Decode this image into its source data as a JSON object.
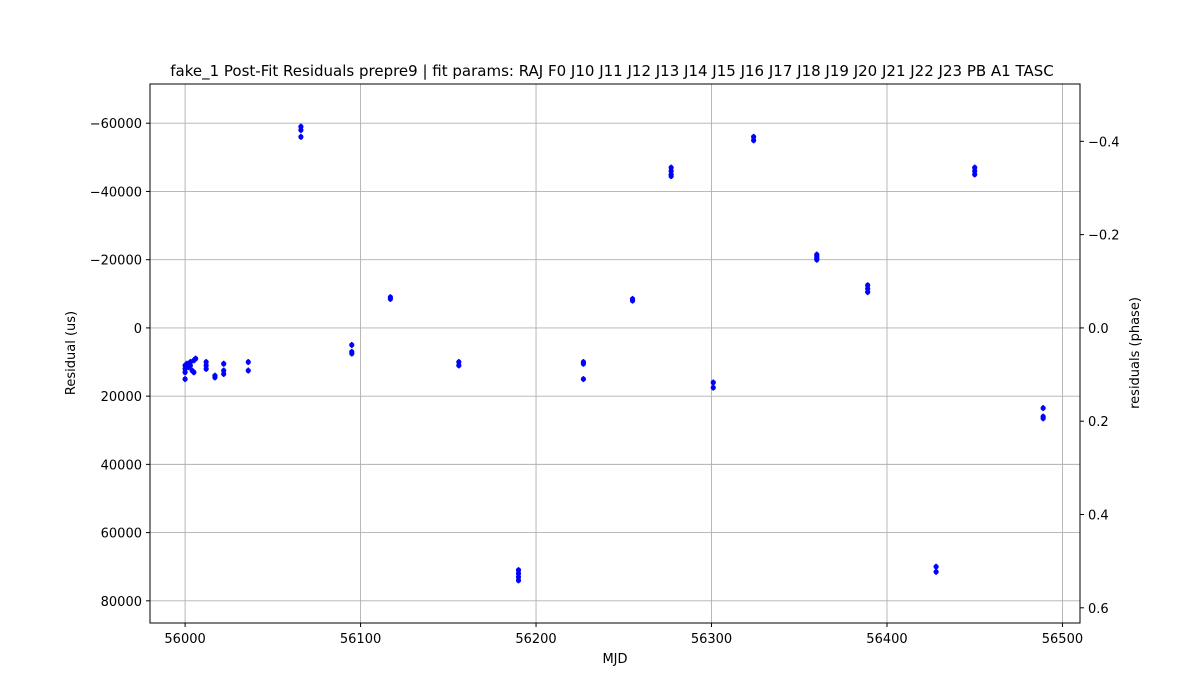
{
  "chart_data": {
    "type": "scatter",
    "title": "fake_1 Post-Fit Residuals prepre9 | fit params: RAJ F0 J10 J11 J12 J13 J14 J15 J16 J17 J18 J19 J20 J21 J22 J23 PB A1 TASC",
    "xlabel": "MJD",
    "ylabel": "Residual (us)",
    "y2label": "residuals (phase)",
    "xlim": [
      55980,
      56510
    ],
    "ylim": [
      86500,
      -71500
    ],
    "y_inverted": true,
    "y2lim": [
      0.6326,
      -0.5229
    ],
    "grid": true,
    "marker_color": "#0000ff",
    "xticks": [
      {
        "value": 56000,
        "label": "56000"
      },
      {
        "value": 56100,
        "label": "56100"
      },
      {
        "value": 56200,
        "label": "56200"
      },
      {
        "value": 56300,
        "label": "56300"
      },
      {
        "value": 56400,
        "label": "56400"
      },
      {
        "value": 56500,
        "label": "56500"
      }
    ],
    "yticks": [
      {
        "value": -60000,
        "label": "−60000"
      },
      {
        "value": -40000,
        "label": "−40000"
      },
      {
        "value": -20000,
        "label": "−20000"
      },
      {
        "value": 0,
        "label": "0"
      },
      {
        "value": 20000,
        "label": "20000"
      },
      {
        "value": 40000,
        "label": "40000"
      },
      {
        "value": 60000,
        "label": "60000"
      },
      {
        "value": 80000,
        "label": "80000"
      }
    ],
    "y2ticks": [
      {
        "value": -0.4,
        "label": "−0.4"
      },
      {
        "value": -0.2,
        "label": "−0.2"
      },
      {
        "value": 0.0,
        "label": "0.0"
      },
      {
        "value": 0.2,
        "label": "0.2"
      },
      {
        "value": 0.4,
        "label": "0.4"
      },
      {
        "value": 0.6,
        "label": "0.6"
      }
    ],
    "series": [
      {
        "points": [
          {
            "x": 56000,
            "y": 11000
          },
          {
            "x": 56000,
            "y": 12000
          },
          {
            "x": 56000,
            "y": 13000
          },
          {
            "x": 56000,
            "y": 15000
          },
          {
            "x": 56001,
            "y": 10500
          },
          {
            "x": 56002,
            "y": 11500
          },
          {
            "x": 56003,
            "y": 11000
          },
          {
            "x": 56003,
            "y": 10000
          },
          {
            "x": 56004,
            "y": 12500
          },
          {
            "x": 56005,
            "y": 13000
          },
          {
            "x": 56005,
            "y": 9500
          },
          {
            "x": 56006,
            "y": 9000
          },
          {
            "x": 56012,
            "y": 10000
          },
          {
            "x": 56012,
            "y": 12000
          },
          {
            "x": 56012,
            "y": 11000
          },
          {
            "x": 56017,
            "y": 14500
          },
          {
            "x": 56017,
            "y": 14000
          },
          {
            "x": 56022,
            "y": 10500
          },
          {
            "x": 56022,
            "y": 12500
          },
          {
            "x": 56022,
            "y": 13500
          },
          {
            "x": 56036,
            "y": 10000
          },
          {
            "x": 56036,
            "y": 12500
          },
          {
            "x": 56066,
            "y": -58000
          },
          {
            "x": 56066,
            "y": -59000
          },
          {
            "x": 56066,
            "y": -56000
          },
          {
            "x": 56095,
            "y": 5000
          },
          {
            "x": 56095,
            "y": 7000
          },
          {
            "x": 56095,
            "y": 7500
          },
          {
            "x": 56117,
            "y": -8500
          },
          {
            "x": 56117,
            "y": -9000
          },
          {
            "x": 56156,
            "y": 10000
          },
          {
            "x": 56156,
            "y": 11000
          },
          {
            "x": 56190,
            "y": 71000
          },
          {
            "x": 56190,
            "y": 72000
          },
          {
            "x": 56190,
            "y": 73000
          },
          {
            "x": 56190,
            "y": 74000
          },
          {
            "x": 56227,
            "y": 10000
          },
          {
            "x": 56227,
            "y": 10500
          },
          {
            "x": 56227,
            "y": 15000
          },
          {
            "x": 56255,
            "y": -8500
          },
          {
            "x": 56255,
            "y": -8000
          },
          {
            "x": 56277,
            "y": -47000
          },
          {
            "x": 56277,
            "y": -46000
          },
          {
            "x": 56277,
            "y": -45000
          },
          {
            "x": 56277,
            "y": -44500
          },
          {
            "x": 56301,
            "y": 16000
          },
          {
            "x": 56301,
            "y": 17500
          },
          {
            "x": 56324,
            "y": -56000
          },
          {
            "x": 56324,
            "y": -55000
          },
          {
            "x": 56360,
            "y": -21500
          },
          {
            "x": 56360,
            "y": -21000
          },
          {
            "x": 56360,
            "y": -20500
          },
          {
            "x": 56360,
            "y": -20000
          },
          {
            "x": 56389,
            "y": -12500
          },
          {
            "x": 56389,
            "y": -11500
          },
          {
            "x": 56389,
            "y": -10500
          },
          {
            "x": 56428,
            "y": 70000
          },
          {
            "x": 56428,
            "y": 71500
          },
          {
            "x": 56450,
            "y": -47000
          },
          {
            "x": 56450,
            "y": -46000
          },
          {
            "x": 56450,
            "y": -45000
          },
          {
            "x": 56489,
            "y": 23500
          },
          {
            "x": 56489,
            "y": 26000
          },
          {
            "x": 56489,
            "y": 26500
          }
        ]
      }
    ]
  }
}
